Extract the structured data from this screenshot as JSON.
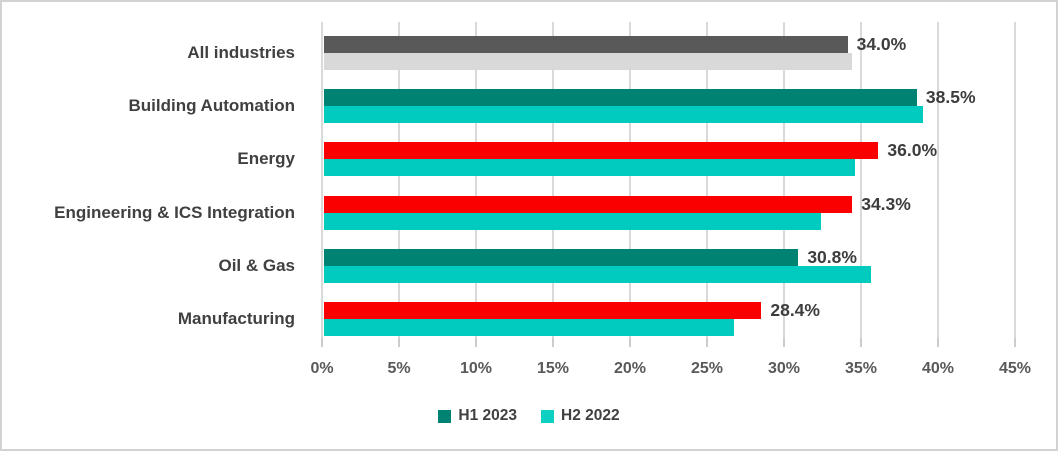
{
  "chart_data": {
    "type": "bar",
    "orientation": "horizontal",
    "title": "",
    "categories": [
      "All industries",
      "Building Automation",
      "Energy",
      "Engineering & ICS Integration",
      "Oil & Gas",
      "Manufacturing"
    ],
    "series": [
      {
        "name": "H1 2023",
        "values": [
          34.0,
          38.5,
          36.0,
          34.3,
          30.8,
          28.4
        ],
        "data_labels": [
          "34.0%",
          "38.5%",
          "36.0%",
          "34.3%",
          "30.8%",
          "28.4%"
        ],
        "bar_colors": [
          "#595959",
          "#008272",
          "#FA0000",
          "#FA0000",
          "#008272",
          "#FA0000"
        ]
      },
      {
        "name": "H2 2022",
        "values": [
          34.3,
          38.9,
          34.5,
          32.3,
          35.5,
          26.6
        ],
        "data_labels": [
          "",
          "",
          "",
          "",
          "",
          ""
        ],
        "bar_colors": [
          "#D9D9D9",
          "#00CBBE",
          "#00CBBE",
          "#00CBBE",
          "#00CBBE",
          "#00CBBE"
        ]
      }
    ],
    "xlim": [
      0,
      45
    ],
    "x_tick_labels": [
      "0%",
      "5%",
      "10%",
      "15%",
      "20%",
      "25%",
      "30%",
      "35%",
      "40%",
      "45%"
    ],
    "grid": "vertical",
    "gridline_color": "#d9d9d9",
    "legend_position": "bottom-center",
    "legend": [
      {
        "label": "H1 2023",
        "color": "#008272"
      },
      {
        "label": "H2 2022",
        "color": "#0DCFC2"
      }
    ]
  }
}
